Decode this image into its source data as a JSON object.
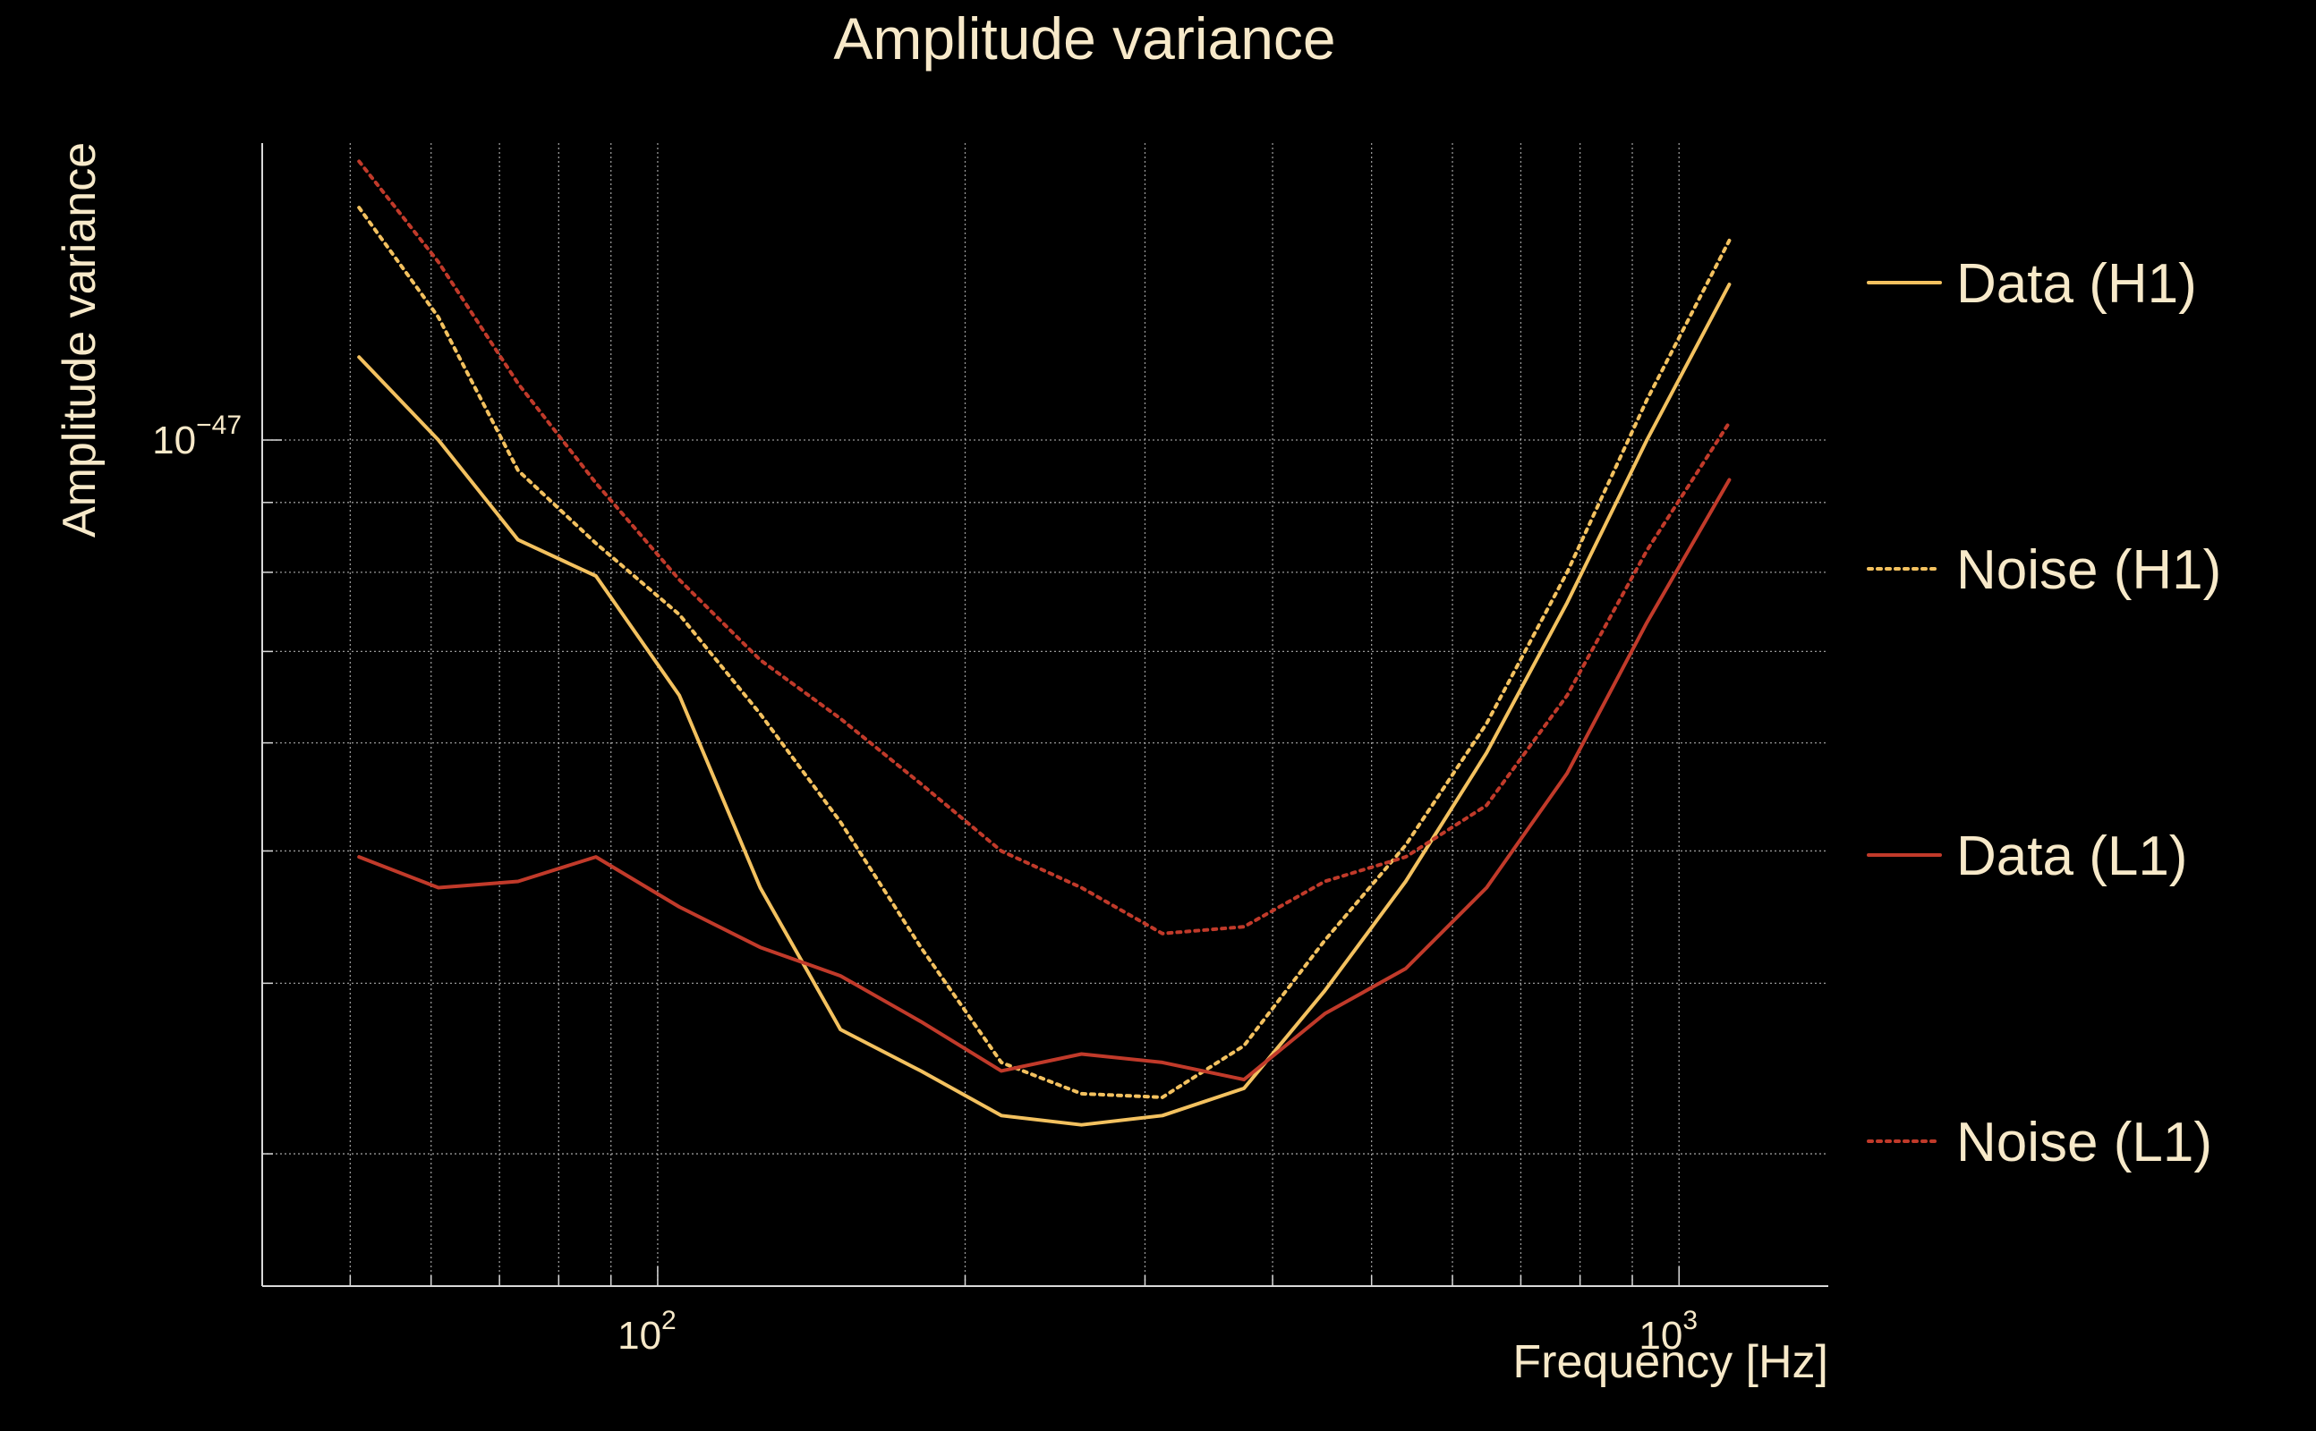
{
  "chart_data": {
    "type": "line",
    "title": "Amplitude variance",
    "xlabel": "Frequency [Hz]",
    "ylabel": "Amplitude variance",
    "x_scale": "log",
    "y_scale": "log",
    "xlim": [
      41,
      1400
    ],
    "ylim": [
      2.4e-48,
      1.65e-47
    ],
    "grid": true,
    "legend_position": "right",
    "x_ticks": [
      {
        "value": 100,
        "mantissa": "10",
        "exponent": "2"
      },
      {
        "value": 1000,
        "mantissa": "10",
        "exponent": "3"
      }
    ],
    "y_ticks": [
      {
        "value": 1e-47,
        "mantissa": "10",
        "exponent": "−47"
      }
    ],
    "x": [
      51,
      61,
      73,
      87,
      105,
      126,
      151,
      181,
      217,
      260,
      312,
      375,
      450,
      540,
      648,
      777,
      930,
      1120
    ],
    "series": [
      {
        "name": "Data (H1)",
        "color": "#f3c15f",
        "dash": "solid",
        "values": [
          1.15e-47,
          1e-47,
          8.45e-48,
          7.95e-48,
          6.5e-48,
          4.7e-48,
          3.7e-48,
          3.45e-48,
          3.2e-48,
          3.15e-48,
          3.2e-48,
          3.35e-48,
          3.95e-48,
          4.75e-48,
          5.9e-48,
          7.6e-48,
          1e-47,
          1.3e-47
        ]
      },
      {
        "name": "Noise (H1)",
        "color": "#f3c15f",
        "dash": "dotted",
        "values": [
          1.48e-47,
          1.23e-47,
          9.5e-48,
          8.4e-48,
          7.45e-48,
          6.3e-48,
          5.25e-48,
          4.25e-48,
          3.5e-48,
          3.32e-48,
          3.3e-48,
          3.6e-48,
          4.3e-48,
          5.05e-48,
          6.2e-48,
          8e-48,
          1.07e-47,
          1.4e-47
        ]
      },
      {
        "name": "Data (L1)",
        "color": "#c13a2a",
        "dash": "solid",
        "values": [
          4.95e-48,
          4.7e-48,
          4.75e-48,
          4.95e-48,
          4.55e-48,
          4.25e-48,
          4.05e-48,
          3.75e-48,
          3.45e-48,
          3.55e-48,
          3.5e-48,
          3.4e-48,
          3.8e-48,
          4.1e-48,
          4.7e-48,
          5.7e-48,
          7.35e-48,
          9.35e-48
        ]
      },
      {
        "name": "Noise (L1)",
        "color": "#c13a2a",
        "dash": "dotted",
        "values": [
          1.6e-47,
          1.35e-47,
          1.1e-47,
          9.3e-48,
          7.9e-48,
          6.9e-48,
          6.25e-48,
          5.6e-48,
          5e-48,
          4.7e-48,
          4.35e-48,
          4.4e-48,
          4.75e-48,
          4.95e-48,
          5.4e-48,
          6.5e-48,
          8.3e-48,
          1.03e-47
        ]
      }
    ]
  }
}
